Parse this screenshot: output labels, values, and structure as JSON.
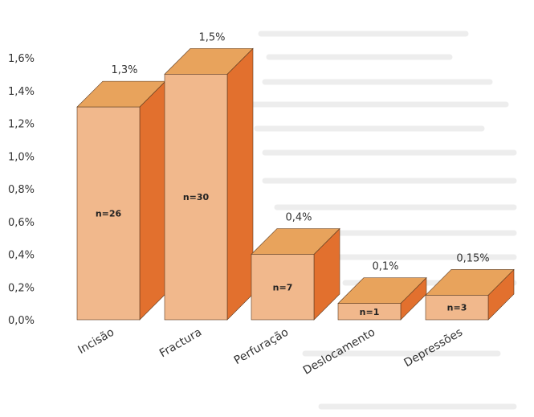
{
  "chart_data": {
    "type": "bar",
    "title": "",
    "xlabel": "",
    "ylabel": "",
    "ylim": [
      0,
      1.6
    ],
    "yticks": [
      "0,0%",
      "0,2%",
      "0,4%",
      "0,6%",
      "0,8%",
      "1,0%",
      "1,2%",
      "1,4%",
      "1,6%"
    ],
    "yticks_values": [
      0,
      0.2,
      0.4,
      0.6,
      0.8,
      1.0,
      1.2,
      1.4,
      1.6
    ],
    "grid": false,
    "categories": [
      "Incisão",
      "Fractura",
      "Perfuração",
      "Deslocamento",
      "Depressões"
    ],
    "values": [
      1.3,
      1.5,
      0.4,
      0.1,
      0.15
    ],
    "value_labels": [
      "1,3%",
      "1,5%",
      "0,4%",
      "0,1%",
      "0,15%"
    ],
    "count_labels": [
      "n=26",
      "n=30",
      "n=7",
      "n=1",
      "n=3"
    ]
  },
  "colors": {
    "front": "#f1b88c",
    "top": "#e8a35c",
    "side": "#e2702e",
    "edge": "#5a3a20"
  }
}
